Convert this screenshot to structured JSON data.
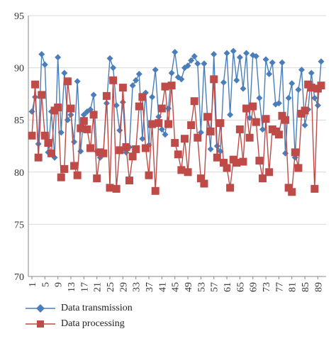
{
  "chart_data": {
    "type": "line",
    "title": "",
    "xlabel": "",
    "ylabel": "",
    "ylim": [
      70,
      95
    ],
    "yticks": [
      70,
      75,
      80,
      85,
      90,
      95
    ],
    "xlim": [
      1,
      90
    ],
    "xtick_labels": [
      "1",
      "5",
      "9",
      "13",
      "17",
      "21",
      "25",
      "29",
      "33",
      "37",
      "41",
      "45",
      "49",
      "53",
      "57",
      "61",
      "65",
      "69",
      "73",
      "77",
      "81",
      "85",
      "89"
    ],
    "grid": "horizontal",
    "legend_position": "bottom",
    "x": [
      1,
      2,
      3,
      4,
      5,
      6,
      7,
      8,
      9,
      10,
      11,
      12,
      13,
      14,
      15,
      16,
      17,
      18,
      19,
      20,
      21,
      22,
      23,
      24,
      25,
      26,
      27,
      28,
      29,
      30,
      31,
      32,
      33,
      34,
      35,
      36,
      37,
      38,
      39,
      40,
      41,
      42,
      43,
      44,
      45,
      46,
      47,
      48,
      49,
      50,
      51,
      52,
      53,
      54,
      55,
      56,
      57,
      58,
      59,
      60,
      61,
      62,
      63,
      64,
      65,
      66,
      67,
      68,
      69,
      70,
      71,
      72,
      73,
      74,
      75,
      76,
      77,
      78,
      79,
      80,
      81,
      82,
      83,
      84,
      85,
      86,
      87,
      88,
      89,
      90
    ],
    "series": [
      {
        "name": "Data transmission",
        "color": "#4a7ebb",
        "marker": "diamond",
        "values": [
          85.8,
          87.2,
          82.7,
          91.3,
          90.3,
          81.9,
          85.8,
          81.4,
          91.0,
          83.8,
          89.5,
          85.0,
          85.5,
          82.9,
          88.7,
          82.0,
          85.5,
          85.8,
          86.0,
          87.4,
          82.0,
          81.4,
          81.9,
          86.6,
          90.9,
          90.0,
          86.4,
          84.0,
          86.7,
          81.9,
          82.4,
          88.3,
          88.8,
          89.4,
          83.2,
          87.6,
          82.6,
          87.2,
          89.8,
          85.3,
          84.1,
          83.6,
          86.1,
          89.5,
          91.5,
          89.1,
          88.9,
          90.0,
          90.2,
          90.7,
          91.1,
          90.4,
          83.8,
          90.4,
          85.4,
          82.2,
          91.3,
          82.5,
          82.0,
          88.6,
          91.4,
          85.5,
          91.6,
          88.8,
          91.0,
          88.0,
          91.4,
          85.2,
          91.2,
          91.1,
          87.1,
          84.1,
          90.8,
          89.4,
          90.5,
          86.5,
          86.6,
          90.5,
          81.8,
          87.1,
          88.5,
          81.4,
          87.9,
          89.8,
          84.5,
          86.0,
          89.5,
          87.1,
          86.4,
          90.6
        ]
      },
      {
        "name": "Data processing",
        "color": "#be4b48",
        "marker": "square",
        "values": [
          83.5,
          88.4,
          81.4,
          87.4,
          83.5,
          82.8,
          81.8,
          85.9,
          86.2,
          79.5,
          80.3,
          88.7,
          86.1,
          80.6,
          79.7,
          84.2,
          84.9,
          84.1,
          82.3,
          85.5,
          79.4,
          81.9,
          81.8,
          87.3,
          78.5,
          88.8,
          78.4,
          82.1,
          88.1,
          82.4,
          79.2,
          81.5,
          82.2,
          86.3,
          87.2,
          82.3,
          79.7,
          84.6,
          78.2,
          84.7,
          86.1,
          88.2,
          84.6,
          88.3,
          82.8,
          81.7,
          80.2,
          83.2,
          80.0,
          84.5,
          86.8,
          83.3,
          79.4,
          78.9,
          85.3,
          83.9,
          88.9,
          81.4,
          84.7,
          80.9,
          80.4,
          78.5,
          81.2,
          80.9,
          84.1,
          81.0,
          86.1,
          83.3,
          86.3,
          84.8,
          81.1,
          79.4,
          85.1,
          80.0,
          84.1,
          83.9,
          83.6,
          85.4,
          85.0,
          78.5,
          78.1,
          81.9,
          80.4,
          85.6,
          85.9,
          88.4,
          88.1,
          78.4,
          88.0,
          88.3
        ]
      }
    ]
  }
}
